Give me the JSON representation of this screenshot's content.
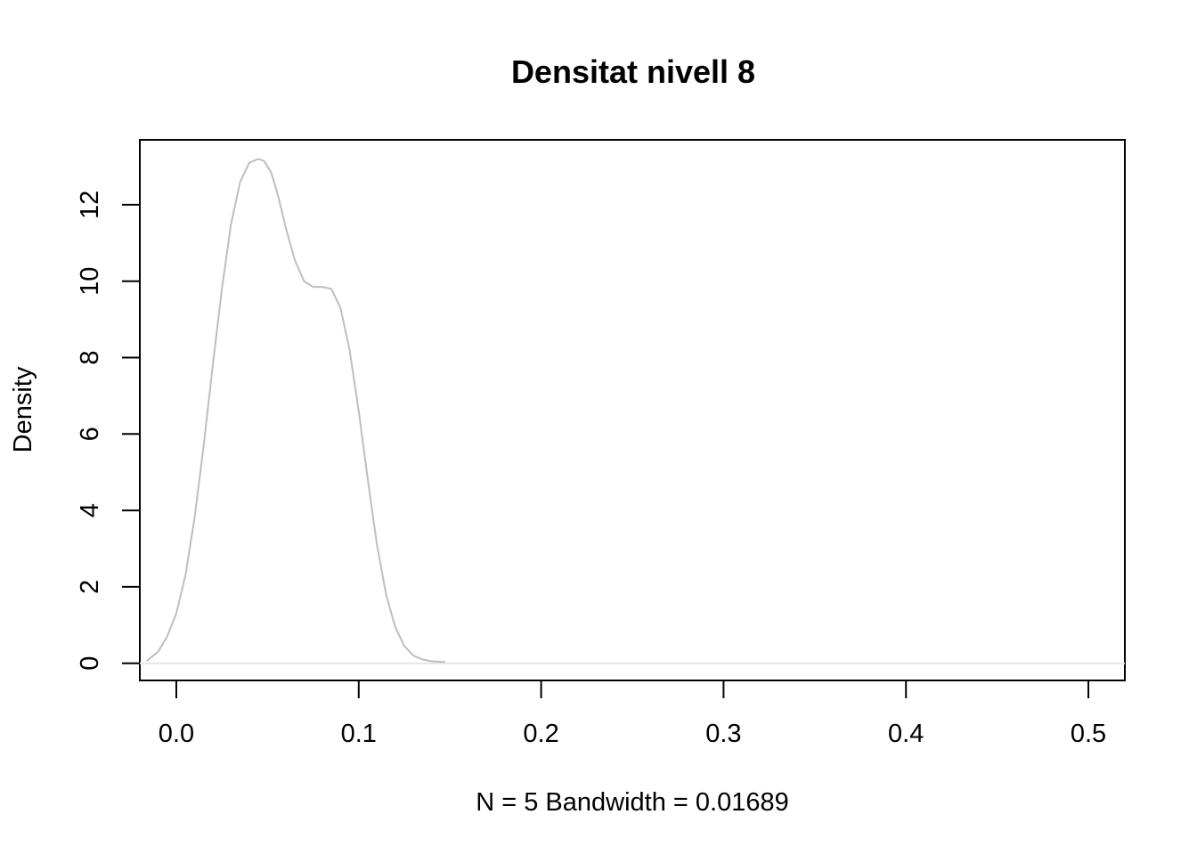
{
  "chart_data": {
    "type": "line",
    "title": "Densitat nivell 8",
    "xlabel": "N = 5   Bandwidth = 0.01689",
    "ylabel": "Density",
    "xlim": [
      -0.02,
      0.52
    ],
    "ylim": [
      -0.45,
      13.7
    ],
    "x_ticks": [
      "0.0",
      "0.1",
      "0.2",
      "0.3",
      "0.4",
      "0.5"
    ],
    "y_ticks": [
      "0",
      "2",
      "4",
      "6",
      "8",
      "10",
      "12"
    ],
    "grid": false,
    "legend": "none",
    "baseline": 0,
    "series": [
      {
        "color": "#bebebe",
        "x": [
          -0.016,
          -0.01,
          -0.005,
          0.0,
          0.005,
          0.01,
          0.015,
          0.02,
          0.025,
          0.03,
          0.035,
          0.04,
          0.045,
          0.048,
          0.052,
          0.056,
          0.06,
          0.065,
          0.07,
          0.075,
          0.08,
          0.085,
          0.09,
          0.095,
          0.1,
          0.105,
          0.11,
          0.115,
          0.12,
          0.125,
          0.13,
          0.135,
          0.14,
          0.147
        ],
        "y": [
          0.07,
          0.3,
          0.7,
          1.3,
          2.3,
          3.8,
          5.7,
          7.8,
          9.8,
          11.5,
          12.6,
          13.1,
          13.2,
          13.15,
          12.85,
          12.2,
          11.4,
          10.55,
          10.0,
          9.85,
          9.85,
          9.8,
          9.3,
          8.2,
          6.6,
          4.8,
          3.1,
          1.8,
          0.95,
          0.45,
          0.2,
          0.1,
          0.05,
          0.03
        ]
      }
    ]
  }
}
